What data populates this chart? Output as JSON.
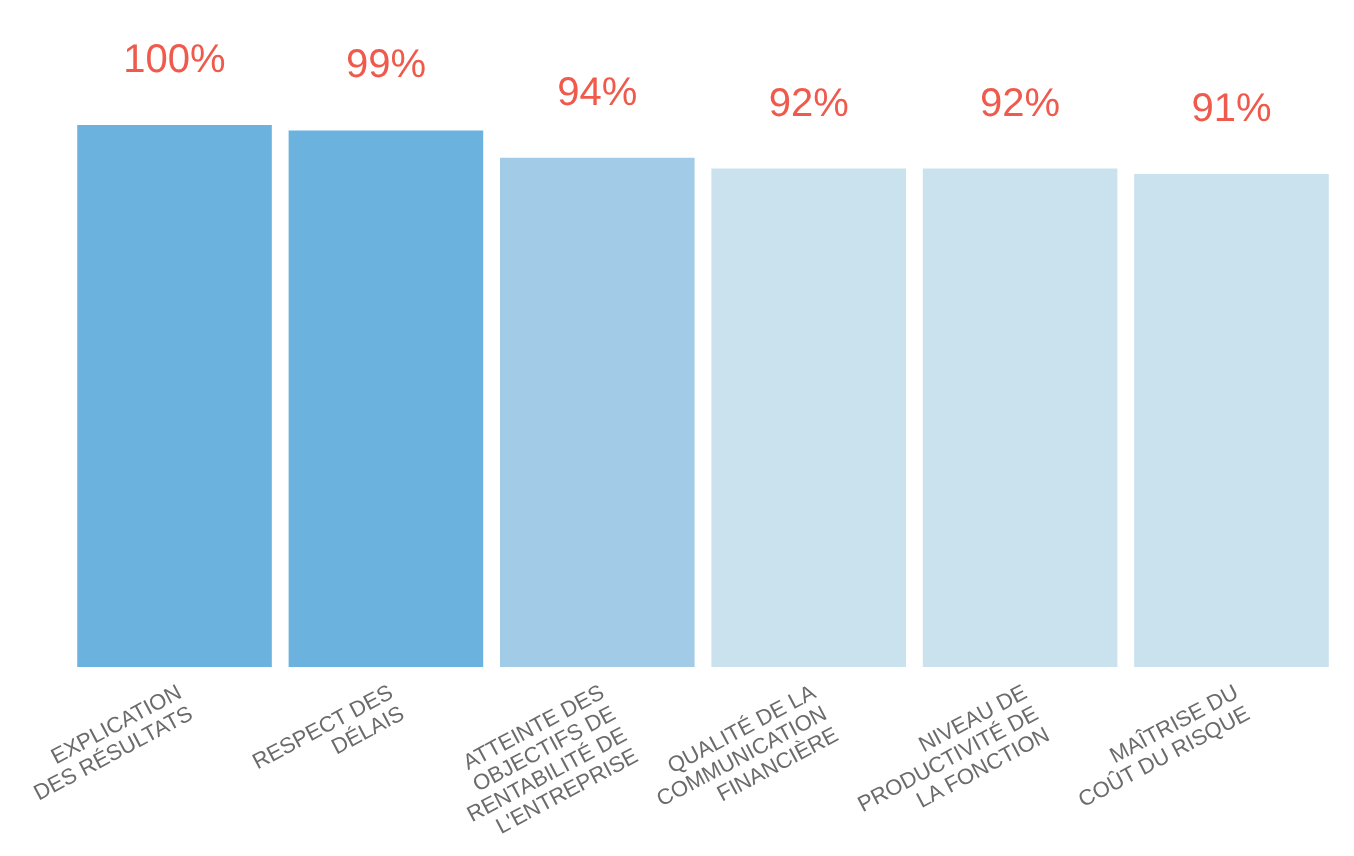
{
  "chart_data": {
    "type": "bar",
    "categories": [
      "EXPLICATION\nDES RÉSULTATS",
      "RESPECT DES\nDÉLAIS",
      "ATTEINTE DES\nOBJECTIFS DE\nRENTABILITÉ DE\nL'ENTREPRISE",
      "QUALITÉ DE LA\nCOMMUNICATION\nFINANCIÈRE",
      "NIVEAU DE\nPRODUCTIVITÉ DE\nLA FONCTION",
      "MAÎTRISE DU\nCOÛT DU RISQUE"
    ],
    "values": [
      100,
      99,
      94,
      92,
      92,
      91
    ],
    "colors": [
      "#6cb2de",
      "#6cb2de",
      "#a1cbe6",
      "#c9e2ee",
      "#c9e2ee",
      "#c9e2ee"
    ],
    "value_labels": [
      "100%",
      "99%",
      "94%",
      "92%",
      "92%",
      "91%"
    ],
    "tick_labels": "x",
    "legend": false,
    "grid": false
  }
}
